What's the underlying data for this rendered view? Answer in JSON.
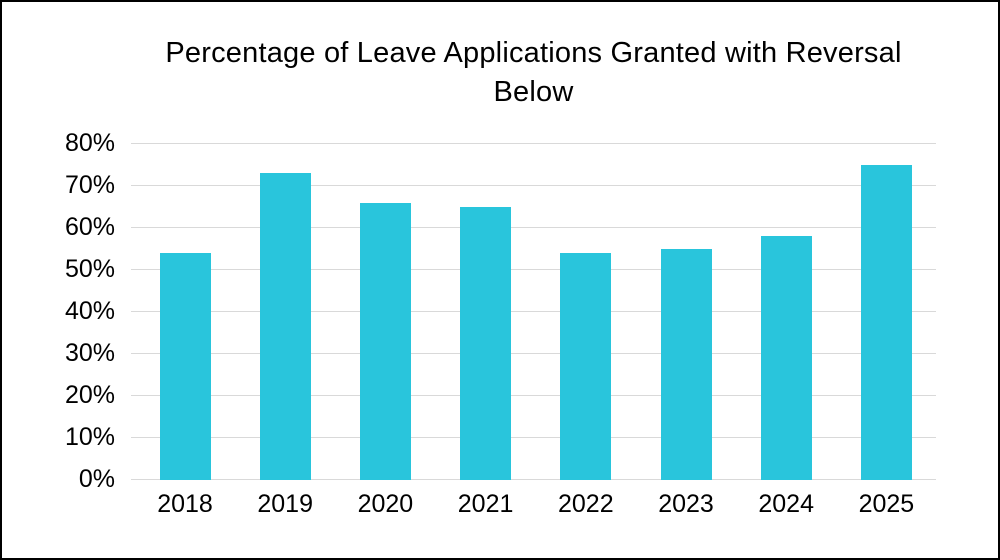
{
  "chart_data": {
    "type": "bar",
    "title": "Percentage of Leave Applications Granted with Reversal Below",
    "categories": [
      "2018",
      "2019",
      "2020",
      "2021",
      "2022",
      "2023",
      "2024",
      "2025"
    ],
    "values": [
      54,
      73,
      66,
      65,
      54,
      55,
      58,
      75
    ],
    "value_unit": "%",
    "xlabel": "",
    "ylabel": "",
    "ylim": [
      0,
      80
    ],
    "ytick_values": [
      0,
      10,
      20,
      30,
      40,
      50,
      60,
      70,
      80
    ],
    "ytick_labels": [
      "0%",
      "10%",
      "20%",
      "30%",
      "40%",
      "50%",
      "60%",
      "70%",
      "80%"
    ],
    "grid": "horizontal",
    "legend": "none",
    "colors": {
      "bar": "#29C5DC",
      "gridline": "#D9D9D9",
      "text": "#000000",
      "background": "#FFFFFF",
      "border": "#000000"
    }
  }
}
